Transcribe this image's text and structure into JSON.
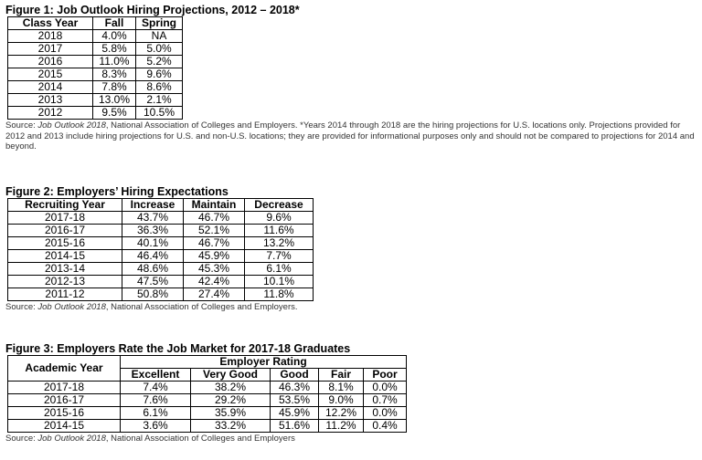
{
  "figure1": {
    "title": "Figure 1: Job Outlook Hiring Projections, 2012 – 2018*",
    "headers": [
      "Class Year",
      "Fall",
      "Spring"
    ],
    "rows": [
      [
        "2018",
        "4.0%",
        "NA"
      ],
      [
        "2017",
        "5.8%",
        "5.0%"
      ],
      [
        "2016",
        "11.0%",
        "5.2%"
      ],
      [
        "2015",
        "8.3%",
        "9.6%"
      ],
      [
        "2014",
        "7.8%",
        "8.6%"
      ],
      [
        "2013",
        "13.0%",
        "2.1%"
      ],
      [
        "2012",
        "9.5%",
        "10.5%"
      ]
    ],
    "source_prefix": "Source: ",
    "source_pub": "Job Outlook 2018",
    "source_rest": ", National Association of Colleges and Employers. *Years 2014 through 2018 are the hiring projections for U.S. locations only. Projections provided for 2012 and 2013 include hiring projections for U.S. and non-U.S. locations; they are provided for informational purposes only and should not be compared to projections for 2014 and beyond."
  },
  "figure2": {
    "title": "Figure 2: Employers’ Hiring Expectations",
    "headers": [
      "Recruiting Year",
      "Increase",
      "Maintain",
      "Decrease"
    ],
    "rows": [
      [
        "2017-18",
        "43.7%",
        "46.7%",
        "9.6%"
      ],
      [
        "2016-17",
        "36.3%",
        "52.1%",
        "11.6%"
      ],
      [
        "2015-16",
        "40.1%",
        "46.7%",
        "13.2%"
      ],
      [
        "2014-15",
        "46.4%",
        "45.9%",
        "7.7%"
      ],
      [
        "2013-14",
        "48.6%",
        "45.3%",
        "6.1%"
      ],
      [
        "2012-13",
        "47.5%",
        "42.4%",
        "10.1%"
      ],
      [
        "2011-12",
        "50.8%",
        "27.4%",
        "11.8%"
      ]
    ],
    "source_prefix": "Source: ",
    "source_pub": "Job Outlook 2018",
    "source_rest": ", National Association of Colleges and Employers."
  },
  "figure3": {
    "title": "Figure 3: Employers Rate the Job Market for 2017-18 Graduates",
    "row_header": "Academic Year",
    "group_header": "Employer Rating",
    "headers": [
      "Excellent",
      "Very Good",
      "Good",
      "Fair",
      "Poor"
    ],
    "rows": [
      [
        "2017-18",
        "7.4%",
        "38.2%",
        "46.3%",
        "8.1%",
        "0.0%"
      ],
      [
        "2016-17",
        "7.6%",
        "29.2%",
        "53.5%",
        "9.0%",
        "0.7%"
      ],
      [
        "2015-16",
        "6.1%",
        "35.9%",
        "45.9%",
        "12.2%",
        "0.0%"
      ],
      [
        "2014-15",
        "3.6%",
        "33.2%",
        "51.6%",
        "11.2%",
        "0.4%"
      ]
    ],
    "source_prefix": "Source: ",
    "source_pub": "Job Outlook 2018",
    "source_rest": ", National Association of Colleges and Employers"
  }
}
